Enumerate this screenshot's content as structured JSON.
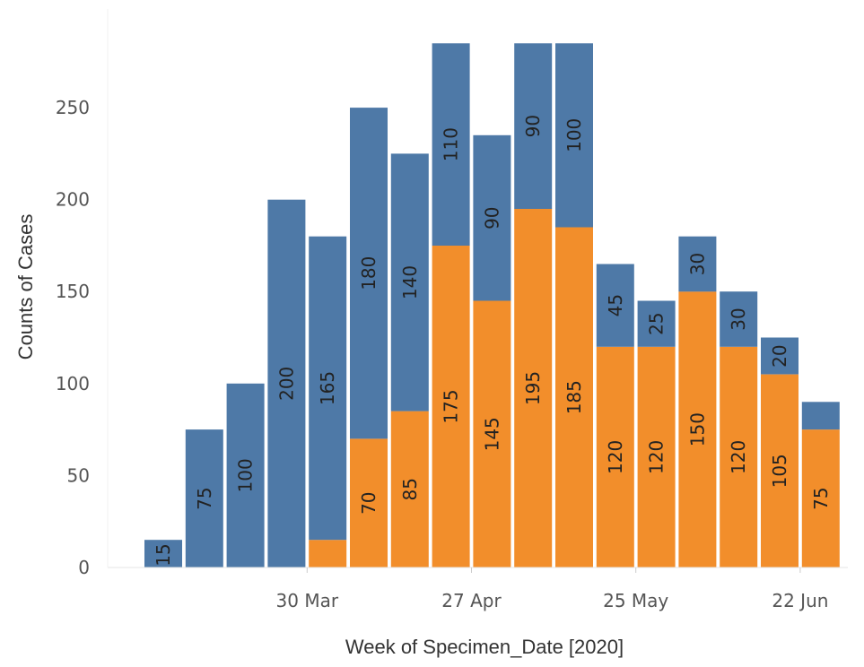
{
  "chart_data": {
    "type": "bar",
    "stacked": true,
    "xlabel": "Week of Specimen_Date [2020]",
    "ylabel": "Counts of Cases",
    "ylim": [
      0,
      290
    ],
    "yticks": [
      0,
      50,
      100,
      150,
      200,
      250
    ],
    "x_tick_labels": [
      {
        "index": 3,
        "label": "30 Mar"
      },
      {
        "index": 7,
        "label": "27 Apr"
      },
      {
        "index": 11,
        "label": "25 May"
      },
      {
        "index": 15,
        "label": "22 Jun"
      }
    ],
    "grid": false,
    "legend": "none",
    "colors": {
      "bottom": "#f28e2b",
      "top": "#4e79a7"
    },
    "series": [
      {
        "values": [
          0,
          0,
          0,
          0,
          15,
          70,
          85,
          175,
          145,
          195,
          185,
          120,
          120,
          150,
          120,
          105,
          75
        ],
        "labels": [
          "",
          "",
          "",
          "",
          "",
          "70",
          "85",
          "175",
          "145",
          "195",
          "185",
          "120",
          "120",
          "150",
          "120",
          "105",
          "75"
        ]
      },
      {
        "values": [
          15,
          75,
          100,
          200,
          165,
          180,
          140,
          110,
          90,
          90,
          100,
          45,
          25,
          30,
          30,
          20,
          15
        ],
        "labels": [
          "15",
          "75",
          "100",
          "200",
          "165",
          "180",
          "140",
          "110",
          "90",
          "90",
          "100",
          "45",
          "25",
          "30",
          "30",
          "20",
          ""
        ]
      }
    ]
  }
}
